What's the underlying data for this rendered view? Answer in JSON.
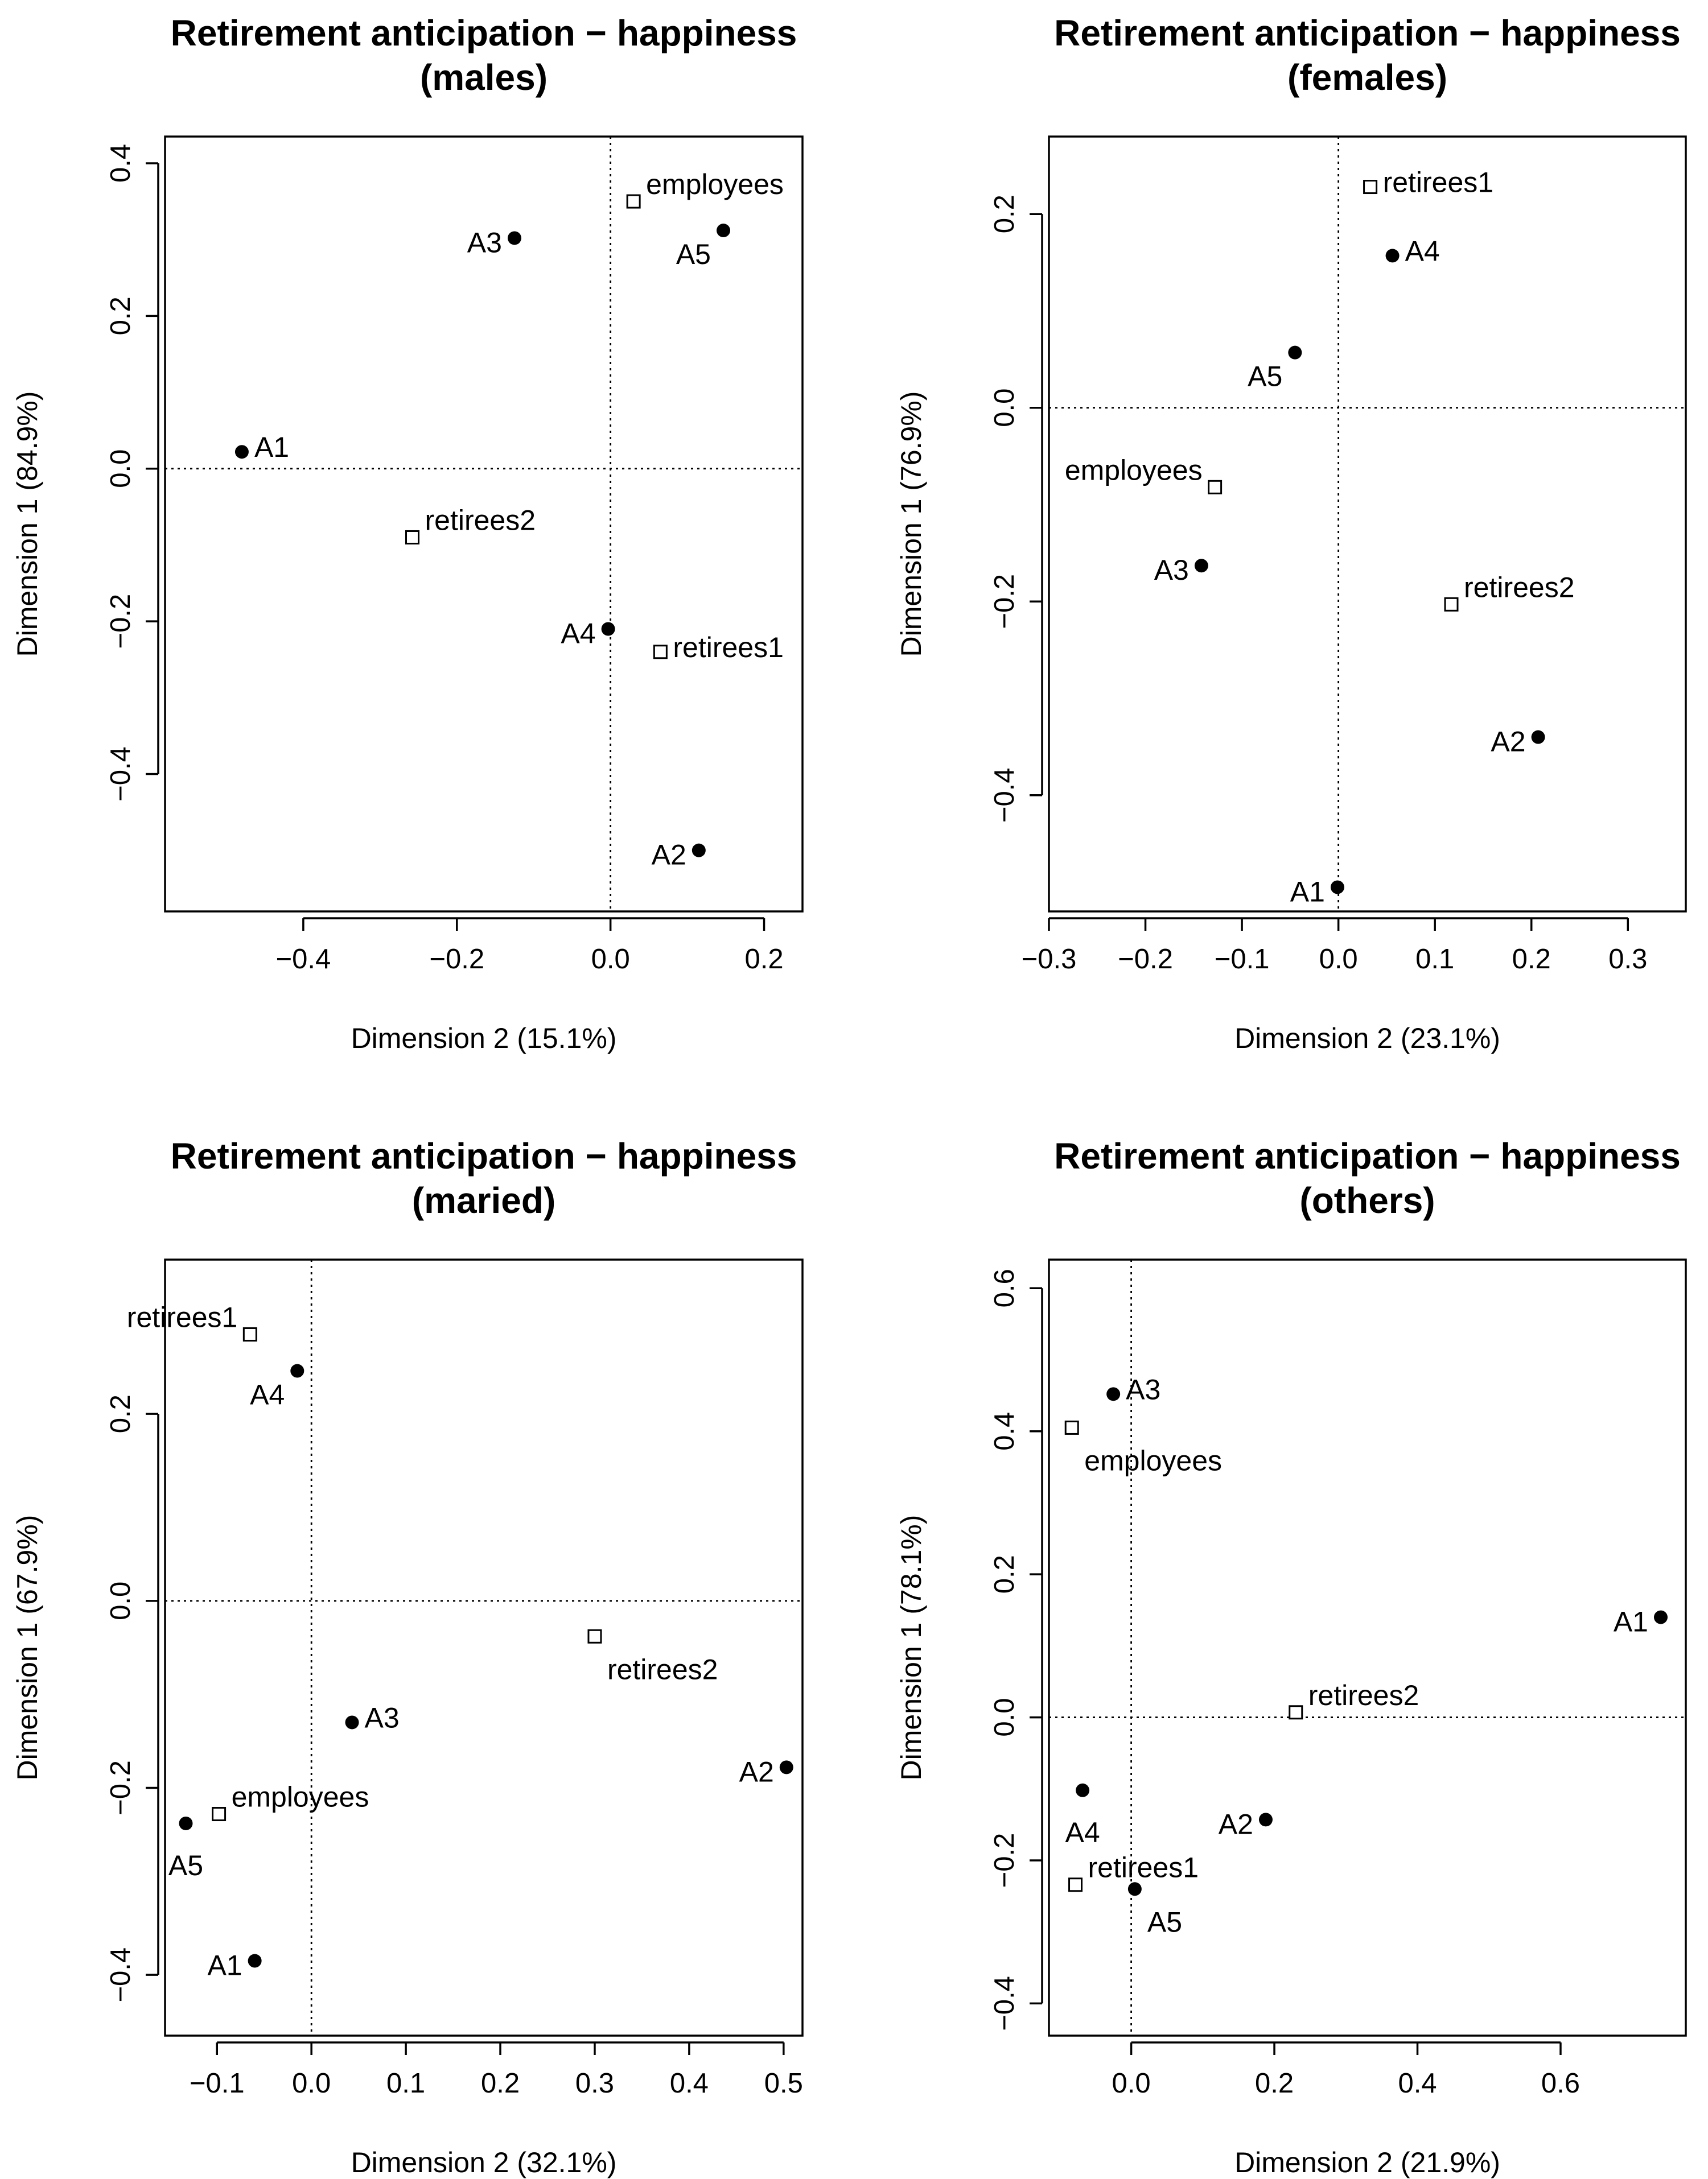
{
  "chart_data": [
    {
      "type": "scatter",
      "title": [
        "Retirement anticipation − happiness",
        "(males)"
      ],
      "xlabel": "Dimension 2 (15.1%)",
      "ylabel": "Dimension 1 (84.9%)",
      "xlim": [
        -0.58,
        0.25
      ],
      "ylim": [
        -0.58,
        0.435
      ],
      "xticks": [
        -0.4,
        -0.2,
        0.0,
        0.2
      ],
      "xtick_labels": [
        "−0.4",
        "−0.2",
        "0.0",
        "0.2"
      ],
      "yticks": [
        -0.4,
        -0.2,
        0.0,
        0.2,
        0.4
      ],
      "ytick_labels": [
        "−0.4",
        "−0.2",
        "0.0",
        "0.2",
        "0.4"
      ],
      "points": [
        {
          "label": "A1",
          "x": -0.48,
          "y": 0.022,
          "marker": "filled",
          "label_pos": "right"
        },
        {
          "label": "A2",
          "x": 0.115,
          "y": -0.5,
          "marker": "filled",
          "label_pos": "left"
        },
        {
          "label": "A3",
          "x": -0.125,
          "y": 0.302,
          "marker": "filled",
          "label_pos": "left"
        },
        {
          "label": "A4",
          "x": -0.003,
          "y": -0.21,
          "marker": "filled",
          "label_pos": "left"
        },
        {
          "label": "A5",
          "x": 0.147,
          "y": 0.312,
          "marker": "filled",
          "label_pos": "below-left"
        },
        {
          "label": "employees",
          "x": 0.03,
          "y": 0.35,
          "marker": "open",
          "label_pos": "above-right"
        },
        {
          "label": "retirees2",
          "x": -0.258,
          "y": -0.09,
          "marker": "open",
          "label_pos": "above-right"
        },
        {
          "label": "retirees1",
          "x": 0.065,
          "y": -0.24,
          "marker": "open",
          "label_pos": "right"
        }
      ]
    },
    {
      "type": "scatter",
      "title": [
        "Retirement anticipation − happiness",
        "(females)"
      ],
      "xlabel": "Dimension 2 (23.1%)",
      "ylabel": "Dimension 1 (76.9%)",
      "xlim": [
        -0.3,
        0.36
      ],
      "ylim": [
        -0.52,
        0.28
      ],
      "xticks": [
        -0.3,
        -0.2,
        -0.1,
        0.0,
        0.1,
        0.2,
        0.3
      ],
      "xtick_labels": [
        "−0.3",
        "−0.2",
        "−0.1",
        "0.0",
        "0.1",
        "0.2",
        "0.3"
      ],
      "yticks": [
        -0.4,
        -0.2,
        0.0,
        0.2
      ],
      "ytick_labels": [
        "−0.4",
        "−0.2",
        "0.0",
        "0.2"
      ],
      "points": [
        {
          "label": "A1",
          "x": -0.001,
          "y": -0.495,
          "marker": "filled",
          "label_pos": "left"
        },
        {
          "label": "A2",
          "x": 0.207,
          "y": -0.34,
          "marker": "filled",
          "label_pos": "left"
        },
        {
          "label": "A3",
          "x": -0.142,
          "y": -0.163,
          "marker": "filled",
          "label_pos": "left"
        },
        {
          "label": "A4",
          "x": 0.056,
          "y": 0.157,
          "marker": "filled",
          "label_pos": "right"
        },
        {
          "label": "A5",
          "x": -0.045,
          "y": 0.057,
          "marker": "filled",
          "label_pos": "below-left"
        },
        {
          "label": "retirees1",
          "x": 0.033,
          "y": 0.228,
          "marker": "open",
          "label_pos": "right"
        },
        {
          "label": "employees",
          "x": -0.128,
          "y": -0.082,
          "marker": "open",
          "label_pos": "above-left"
        },
        {
          "label": "retirees2",
          "x": 0.117,
          "y": -0.203,
          "marker": "open",
          "label_pos": "above-right"
        }
      ]
    },
    {
      "type": "scatter",
      "title": [
        "Retirement anticipation − happiness",
        "(maried)"
      ],
      "xlabel": "Dimension 2 (32.1%)",
      "ylabel": "Dimension 1 (67.9%)",
      "xlim": [
        -0.155,
        0.52
      ],
      "ylim": [
        -0.465,
        0.365
      ],
      "xticks": [
        -0.1,
        0.0,
        0.1,
        0.2,
        0.3,
        0.4,
        0.5
      ],
      "xtick_labels": [
        "−0.1",
        "0.0",
        "0.1",
        "0.2",
        "0.3",
        "0.4",
        "0.5"
      ],
      "yticks": [
        -0.4,
        -0.2,
        0.0,
        0.2
      ],
      "ytick_labels": [
        "−0.4",
        "−0.2",
        "0.0",
        "0.2"
      ],
      "points": [
        {
          "label": "retirees1",
          "x": -0.065,
          "y": 0.285,
          "marker": "open",
          "label_pos": "above-left"
        },
        {
          "label": "A4",
          "x": -0.015,
          "y": 0.246,
          "marker": "filled",
          "label_pos": "below-left"
        },
        {
          "label": "retirees2",
          "x": 0.3,
          "y": -0.038,
          "marker": "open",
          "label_pos": "below-right"
        },
        {
          "label": "A3",
          "x": 0.043,
          "y": -0.13,
          "marker": "filled",
          "label_pos": "right"
        },
        {
          "label": "A2",
          "x": 0.503,
          "y": -0.178,
          "marker": "filled",
          "label_pos": "left"
        },
        {
          "label": "employees",
          "x": -0.098,
          "y": -0.228,
          "marker": "open",
          "label_pos": "above-right"
        },
        {
          "label": "A5",
          "x": -0.133,
          "y": -0.238,
          "marker": "filled",
          "label_pos": "below"
        },
        {
          "label": "A1",
          "x": -0.06,
          "y": -0.385,
          "marker": "filled",
          "label_pos": "left"
        }
      ]
    },
    {
      "type": "scatter",
      "title": [
        "Retirement anticipation − happiness",
        "(others)"
      ],
      "xlabel": "Dimension 2 (21.9%)",
      "ylabel": "Dimension 1 (78.1%)",
      "xlim": [
        -0.115,
        0.775
      ],
      "ylim": [
        -0.445,
        0.64
      ],
      "xticks": [
        0.0,
        0.2,
        0.4,
        0.6
      ],
      "xtick_labels": [
        "0.0",
        "0.2",
        "0.4",
        "0.6"
      ],
      "yticks": [
        -0.4,
        -0.2,
        0.0,
        0.2,
        0.4,
        0.6
      ],
      "ytick_labels": [
        "−0.4",
        "−0.2",
        "0.0",
        "0.2",
        "0.4",
        "0.6"
      ],
      "points": [
        {
          "label": "A3",
          "x": -0.025,
          "y": 0.452,
          "marker": "filled",
          "label_pos": "right"
        },
        {
          "label": "employees",
          "x": -0.083,
          "y": 0.405,
          "marker": "open",
          "label_pos": "below-right"
        },
        {
          "label": "A1",
          "x": 0.74,
          "y": 0.14,
          "marker": "filled",
          "label_pos": "left"
        },
        {
          "label": "retirees2",
          "x": 0.23,
          "y": 0.007,
          "marker": "open",
          "label_pos": "above-right"
        },
        {
          "label": "A4",
          "x": -0.068,
          "y": -0.102,
          "marker": "filled",
          "label_pos": "below"
        },
        {
          "label": "A2",
          "x": 0.188,
          "y": -0.143,
          "marker": "filled",
          "label_pos": "left"
        },
        {
          "label": "retirees1",
          "x": -0.078,
          "y": -0.234,
          "marker": "open",
          "label_pos": "above-right"
        },
        {
          "label": "A5",
          "x": 0.005,
          "y": -0.24,
          "marker": "filled",
          "label_pos": "below-right"
        }
      ]
    }
  ]
}
